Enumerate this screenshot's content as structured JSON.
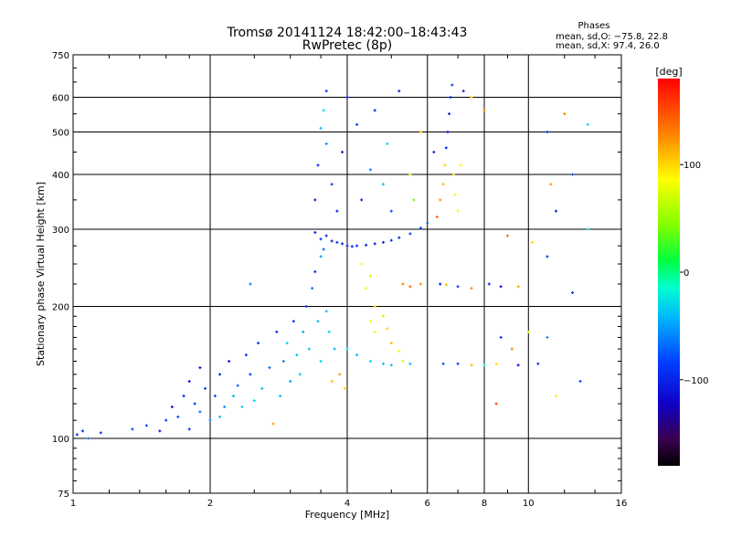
{
  "chart_data": {
    "type": "scatter",
    "title": "Tromsø 20141124 18:42:00–18:43:43",
    "subtitle": "RwPretec (8p)",
    "xlabel": "Frequency [MHz]",
    "ylabel": "Stationary phase Virtual Height [km]",
    "x_scale": "log",
    "y_scale": "log",
    "xlim": [
      1,
      16
    ],
    "ylim": [
      75,
      750
    ],
    "x_ticks": [
      1,
      2,
      4,
      6,
      8,
      10,
      16
    ],
    "x_tick_labels": [
      "1",
      "2",
      "4",
      "6",
      "8",
      "10",
      "16"
    ],
    "y_ticks": [
      75,
      100,
      200,
      300,
      400,
      500,
      600,
      750
    ],
    "y_tick_labels": [
      "75",
      "100",
      "200",
      "300",
      "400",
      "500",
      "600",
      "750"
    ],
    "grid": true,
    "stats": {
      "header": "Phases",
      "line1": "mean, sd,O: −75.8, 22.8",
      "line2": "mean, sd,X:  97.4, 26.0"
    },
    "colorbar": {
      "label": "[deg]",
      "range": [
        -180,
        180
      ],
      "ticks": [
        100,
        0,
        -100
      ],
      "tick_labels": [
        "100",
        "0",
        "−100"
      ],
      "colormap": "rainbow"
    },
    "series": [
      {
        "x": 1.02,
        "y": 102,
        "phase": -100
      },
      {
        "x": 1.05,
        "y": 104,
        "phase": -95
      },
      {
        "x": 1.08,
        "y": 100,
        "phase": -60
      },
      {
        "x": 1.15,
        "y": 103,
        "phase": -90
      },
      {
        "x": 1.35,
        "y": 105,
        "phase": -80
      },
      {
        "x": 1.45,
        "y": 107,
        "phase": -85
      },
      {
        "x": 1.55,
        "y": 104,
        "phase": -105
      },
      {
        "x": 1.6,
        "y": 110,
        "phase": -90
      },
      {
        "x": 1.65,
        "y": 118,
        "phase": -110
      },
      {
        "x": 1.7,
        "y": 112,
        "phase": -80
      },
      {
        "x": 1.75,
        "y": 125,
        "phase": -100
      },
      {
        "x": 1.8,
        "y": 105,
        "phase": -95
      },
      {
        "x": 1.8,
        "y": 135,
        "phase": -110
      },
      {
        "x": 1.85,
        "y": 120,
        "phase": -90
      },
      {
        "x": 1.9,
        "y": 115,
        "phase": -70
      },
      {
        "x": 1.9,
        "y": 145,
        "phase": -120
      },
      {
        "x": 1.95,
        "y": 130,
        "phase": -90
      },
      {
        "x": 2.0,
        "y": 110,
        "phase": -60
      },
      {
        "x": 2.05,
        "y": 125,
        "phase": -85
      },
      {
        "x": 2.1,
        "y": 140,
        "phase": -100
      },
      {
        "x": 2.1,
        "y": 112,
        "phase": -40
      },
      {
        "x": 2.15,
        "y": 118,
        "phase": -55
      },
      {
        "x": 2.2,
        "y": 150,
        "phase": -110
      },
      {
        "x": 2.25,
        "y": 125,
        "phase": -40
      },
      {
        "x": 2.3,
        "y": 132,
        "phase": -70
      },
      {
        "x": 2.35,
        "y": 118,
        "phase": -30
      },
      {
        "x": 2.4,
        "y": 155,
        "phase": -100
      },
      {
        "x": 2.45,
        "y": 140,
        "phase": -85
      },
      {
        "x": 2.5,
        "y": 122,
        "phase": -35
      },
      {
        "x": 2.55,
        "y": 165,
        "phase": -95
      },
      {
        "x": 2.6,
        "y": 130,
        "phase": -45
      },
      {
        "x": 2.7,
        "y": 145,
        "phase": -70
      },
      {
        "x": 2.75,
        "y": 108,
        "phase": 120
      },
      {
        "x": 2.8,
        "y": 175,
        "phase": -100
      },
      {
        "x": 2.85,
        "y": 125,
        "phase": -40
      },
      {
        "x": 2.9,
        "y": 150,
        "phase": -60
      },
      {
        "x": 2.95,
        "y": 165,
        "phase": -30
      },
      {
        "x": 3.0,
        "y": 135,
        "phase": -50
      },
      {
        "x": 3.05,
        "y": 185,
        "phase": -90
      },
      {
        "x": 3.1,
        "y": 155,
        "phase": -40
      },
      {
        "x": 3.15,
        "y": 140,
        "phase": -30
      },
      {
        "x": 3.2,
        "y": 175,
        "phase": -50
      },
      {
        "x": 3.25,
        "y": 200,
        "phase": -95
      },
      {
        "x": 3.3,
        "y": 160,
        "phase": -40
      },
      {
        "x": 3.35,
        "y": 220,
        "phase": -70
      },
      {
        "x": 3.4,
        "y": 240,
        "phase": -90
      },
      {
        "x": 3.45,
        "y": 185,
        "phase": -40
      },
      {
        "x": 3.5,
        "y": 260,
        "phase": -50
      },
      {
        "x": 3.5,
        "y": 150,
        "phase": -30
      },
      {
        "x": 3.55,
        "y": 270,
        "phase": -70
      },
      {
        "x": 3.6,
        "y": 195,
        "phase": -40
      },
      {
        "x": 3.65,
        "y": 175,
        "phase": -30
      },
      {
        "x": 3.7,
        "y": 135,
        "phase": 110
      },
      {
        "x": 3.75,
        "y": 160,
        "phase": -45
      },
      {
        "x": 3.85,
        "y": 140,
        "phase": 120
      },
      {
        "x": 3.95,
        "y": 130,
        "phase": 100
      },
      {
        "x": 3.4,
        "y": 295,
        "phase": -100
      },
      {
        "x": 3.5,
        "y": 285,
        "phase": -95
      },
      {
        "x": 3.6,
        "y": 290,
        "phase": -105
      },
      {
        "x": 3.7,
        "y": 282,
        "phase": -100
      },
      {
        "x": 3.8,
        "y": 280,
        "phase": -95
      },
      {
        "x": 3.9,
        "y": 278,
        "phase": -100
      },
      {
        "x": 4.0,
        "y": 275,
        "phase": -105
      },
      {
        "x": 4.1,
        "y": 274,
        "phase": -100
      },
      {
        "x": 4.2,
        "y": 275,
        "phase": -95
      },
      {
        "x": 4.4,
        "y": 276,
        "phase": -100
      },
      {
        "x": 4.6,
        "y": 278,
        "phase": -105
      },
      {
        "x": 4.8,
        "y": 280,
        "phase": -100
      },
      {
        "x": 5.0,
        "y": 283,
        "phase": -95
      },
      {
        "x": 5.2,
        "y": 287,
        "phase": -100
      },
      {
        "x": 5.5,
        "y": 293,
        "phase": -90
      },
      {
        "x": 5.8,
        "y": 302,
        "phase": -80
      },
      {
        "x": 6.0,
        "y": 310,
        "phase": -70
      },
      {
        "x": 3.4,
        "y": 350,
        "phase": -110
      },
      {
        "x": 3.45,
        "y": 420,
        "phase": -100
      },
      {
        "x": 3.5,
        "y": 510,
        "phase": -40
      },
      {
        "x": 3.55,
        "y": 560,
        "phase": -30
      },
      {
        "x": 3.6,
        "y": 620,
        "phase": -100
      },
      {
        "x": 3.6,
        "y": 470,
        "phase": -60
      },
      {
        "x": 3.7,
        "y": 380,
        "phase": -90
      },
      {
        "x": 3.8,
        "y": 330,
        "phase": -100
      },
      {
        "x": 3.9,
        "y": 450,
        "phase": -110
      },
      {
        "x": 4.0,
        "y": 600,
        "phase": -105
      },
      {
        "x": 4.2,
        "y": 520,
        "phase": -90
      },
      {
        "x": 4.3,
        "y": 350,
        "phase": -95
      },
      {
        "x": 4.5,
        "y": 410,
        "phase": -60
      },
      {
        "x": 4.6,
        "y": 560,
        "phase": -100
      },
      {
        "x": 4.8,
        "y": 380,
        "phase": -40
      },
      {
        "x": 4.9,
        "y": 470,
        "phase": -30
      },
      {
        "x": 5.0,
        "y": 330,
        "phase": -80
      },
      {
        "x": 5.2,
        "y": 620,
        "phase": -100
      },
      {
        "x": 5.5,
        "y": 400,
        "phase": 90
      },
      {
        "x": 5.6,
        "y": 350,
        "phase": 40
      },
      {
        "x": 5.8,
        "y": 500,
        "phase": 110
      },
      {
        "x": 6.2,
        "y": 450,
        "phase": -100
      },
      {
        "x": 6.3,
        "y": 320,
        "phase": 140
      },
      {
        "x": 6.4,
        "y": 350,
        "phase": 120
      },
      {
        "x": 6.5,
        "y": 380,
        "phase": 110
      },
      {
        "x": 6.55,
        "y": 420,
        "phase": 100
      },
      {
        "x": 6.6,
        "y": 460,
        "phase": -100
      },
      {
        "x": 6.65,
        "y": 500,
        "phase": -110
      },
      {
        "x": 6.7,
        "y": 550,
        "phase": -105
      },
      {
        "x": 6.75,
        "y": 600,
        "phase": -100
      },
      {
        "x": 6.8,
        "y": 640,
        "phase": -90
      },
      {
        "x": 6.85,
        "y": 400,
        "phase": 100
      },
      {
        "x": 6.9,
        "y": 360,
        "phase": 90
      },
      {
        "x": 7.0,
        "y": 330,
        "phase": 80
      },
      {
        "x": 7.1,
        "y": 420,
        "phase": 90
      },
      {
        "x": 7.2,
        "y": 620,
        "phase": -100
      },
      {
        "x": 4.3,
        "y": 250,
        "phase": 80
      },
      {
        "x": 4.4,
        "y": 220,
        "phase": 90
      },
      {
        "x": 4.5,
        "y": 235,
        "phase": 70
      },
      {
        "x": 4.6,
        "y": 200,
        "phase": 100
      },
      {
        "x": 4.5,
        "y": 185,
        "phase": 85
      },
      {
        "x": 4.6,
        "y": 175,
        "phase": 90
      },
      {
        "x": 4.8,
        "y": 190,
        "phase": 70
      },
      {
        "x": 4.9,
        "y": 178,
        "phase": 100
      },
      {
        "x": 5.0,
        "y": 165,
        "phase": 110
      },
      {
        "x": 5.2,
        "y": 158,
        "phase": 90
      },
      {
        "x": 5.3,
        "y": 150,
        "phase": 70
      },
      {
        "x": 4.0,
        "y": 160,
        "phase": -30
      },
      {
        "x": 4.2,
        "y": 155,
        "phase": -40
      },
      {
        "x": 4.5,
        "y": 150,
        "phase": -30
      },
      {
        "x": 4.8,
        "y": 148,
        "phase": -45
      },
      {
        "x": 5.0,
        "y": 147,
        "phase": -35
      },
      {
        "x": 5.5,
        "y": 148,
        "phase": -40
      },
      {
        "x": 5.3,
        "y": 225,
        "phase": 130
      },
      {
        "x": 5.5,
        "y": 222,
        "phase": 140
      },
      {
        "x": 5.8,
        "y": 225,
        "phase": 120
      },
      {
        "x": 6.4,
        "y": 225,
        "phase": -100
      },
      {
        "x": 6.6,
        "y": 224,
        "phase": 110
      },
      {
        "x": 7.0,
        "y": 222,
        "phase": -90
      },
      {
        "x": 7.5,
        "y": 220,
        "phase": 130
      },
      {
        "x": 8.2,
        "y": 225,
        "phase": -100
      },
      {
        "x": 8.7,
        "y": 222,
        "phase": -120
      },
      {
        "x": 9.5,
        "y": 222,
        "phase": 120
      },
      {
        "x": 6.5,
        "y": 148,
        "phase": -80
      },
      {
        "x": 7.0,
        "y": 148,
        "phase": -90
      },
      {
        "x": 7.5,
        "y": 147,
        "phase": 110
      },
      {
        "x": 8.0,
        "y": 147,
        "phase": -20
      },
      {
        "x": 8.5,
        "y": 148,
        "phase": 100
      },
      {
        "x": 9.5,
        "y": 147,
        "phase": -110
      },
      {
        "x": 10.5,
        "y": 148,
        "phase": -100
      },
      {
        "x": 8.7,
        "y": 170,
        "phase": -100
      },
      {
        "x": 9.2,
        "y": 160,
        "phase": 130
      },
      {
        "x": 10.0,
        "y": 175,
        "phase": 80
      },
      {
        "x": 11.0,
        "y": 170,
        "phase": -60
      },
      {
        "x": 11.0,
        "y": 260,
        "phase": -90
      },
      {
        "x": 11.5,
        "y": 330,
        "phase": -100
      },
      {
        "x": 11.2,
        "y": 380,
        "phase": 120
      },
      {
        "x": 12.5,
        "y": 400,
        "phase": -80
      },
      {
        "x": 13.5,
        "y": 520,
        "phase": -30
      },
      {
        "x": 12.0,
        "y": 550,
        "phase": 130
      },
      {
        "x": 11.0,
        "y": 500,
        "phase": -90
      },
      {
        "x": 10.2,
        "y": 280,
        "phase": 100
      },
      {
        "x": 9.0,
        "y": 290,
        "phase": 140
      },
      {
        "x": 8.0,
        "y": 560,
        "phase": 130
      },
      {
        "x": 7.5,
        "y": 600,
        "phase": 100
      },
      {
        "x": 8.5,
        "y": 120,
        "phase": 150
      },
      {
        "x": 11.5,
        "y": 125,
        "phase": 90
      },
      {
        "x": 13.0,
        "y": 135,
        "phase": -80
      },
      {
        "x": 12.5,
        "y": 215,
        "phase": -100
      },
      {
        "x": 13.5,
        "y": 300,
        "phase": -30
      },
      {
        "x": 2.45,
        "y": 225,
        "phase": -60
      }
    ]
  }
}
